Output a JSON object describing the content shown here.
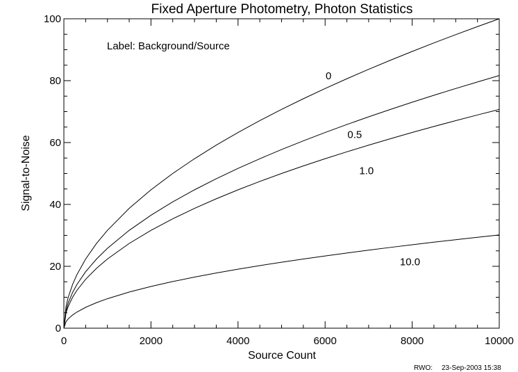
{
  "chart_data": {
    "type": "line",
    "title": "Fixed Aperture Photometry, Photon Statistics",
    "xlabel": "Source Count",
    "ylabel": "Signal-to-Noise",
    "xlim": [
      0,
      10000
    ],
    "ylim": [
      0,
      100
    ],
    "x_ticks": [
      0,
      2000,
      4000,
      6000,
      8000,
      10000
    ],
    "x_tick_labels": [
      "0",
      "2000",
      "4000",
      "6000",
      "8000",
      "10000"
    ],
    "y_ticks": [
      0,
      20,
      40,
      60,
      80,
      100
    ],
    "y_tick_labels": [
      "0",
      "20",
      "40",
      "60",
      "80",
      "100"
    ],
    "grid": false,
    "annotation": "Label: Background/Source",
    "x": [
      0,
      50,
      100,
      200,
      300,
      500,
      750,
      1000,
      1500,
      2000,
      2500,
      3000,
      3500,
      4000,
      4500,
      5000,
      5500,
      6000,
      6500,
      7000,
      7500,
      8000,
      8500,
      9000,
      9500,
      10000
    ],
    "series": [
      {
        "name": "0",
        "values": [
          0,
          7.07,
          10,
          14.14,
          17.32,
          22.36,
          27.39,
          31.62,
          38.73,
          44.72,
          50,
          54.77,
          59.16,
          63.25,
          67.08,
          70.71,
          74.16,
          77.46,
          80.62,
          83.67,
          86.6,
          89.44,
          92.2,
          94.87,
          97.47,
          100
        ]
      },
      {
        "name": "0.5",
        "values": [
          0,
          5.77,
          8.16,
          11.55,
          14.14,
          18.26,
          22.36,
          25.82,
          31.62,
          36.51,
          40.82,
          44.72,
          48.3,
          51.64,
          54.77,
          57.74,
          60.55,
          63.25,
          65.83,
          68.31,
          70.71,
          73.03,
          75.28,
          77.46,
          79.58,
          81.65
        ]
      },
      {
        "name": "1.0",
        "values": [
          0,
          5,
          7.07,
          10,
          12.25,
          15.81,
          19.36,
          22.36,
          27.39,
          31.62,
          35.36,
          38.73,
          41.83,
          44.72,
          47.43,
          50,
          52.44,
          54.77,
          57.01,
          59.16,
          61.24,
          63.25,
          65.19,
          67.08,
          68.92,
          70.71
        ]
      },
      {
        "name": "10.0",
        "values": [
          0,
          2.13,
          3.02,
          4.26,
          5.22,
          6.74,
          8.26,
          9.53,
          11.68,
          13.48,
          15.08,
          16.51,
          17.84,
          19.07,
          20.23,
          21.32,
          22.36,
          23.35,
          24.31,
          25.23,
          26.11,
          26.97,
          27.8,
          28.6,
          29.39,
          30.15
        ]
      }
    ],
    "curve_labels": [
      {
        "text": "0",
        "x": 6080,
        "y": 80.5
      },
      {
        "text": "0.5",
        "x": 6680,
        "y": 61.5
      },
      {
        "text": "1.0",
        "x": 6950,
        "y": 49.8
      },
      {
        "text": "10.0",
        "x": 7950,
        "y": 20.3
      }
    ]
  },
  "footer": {
    "author": "RWO:",
    "timestamp": "23-Sep-2003 15:38"
  }
}
